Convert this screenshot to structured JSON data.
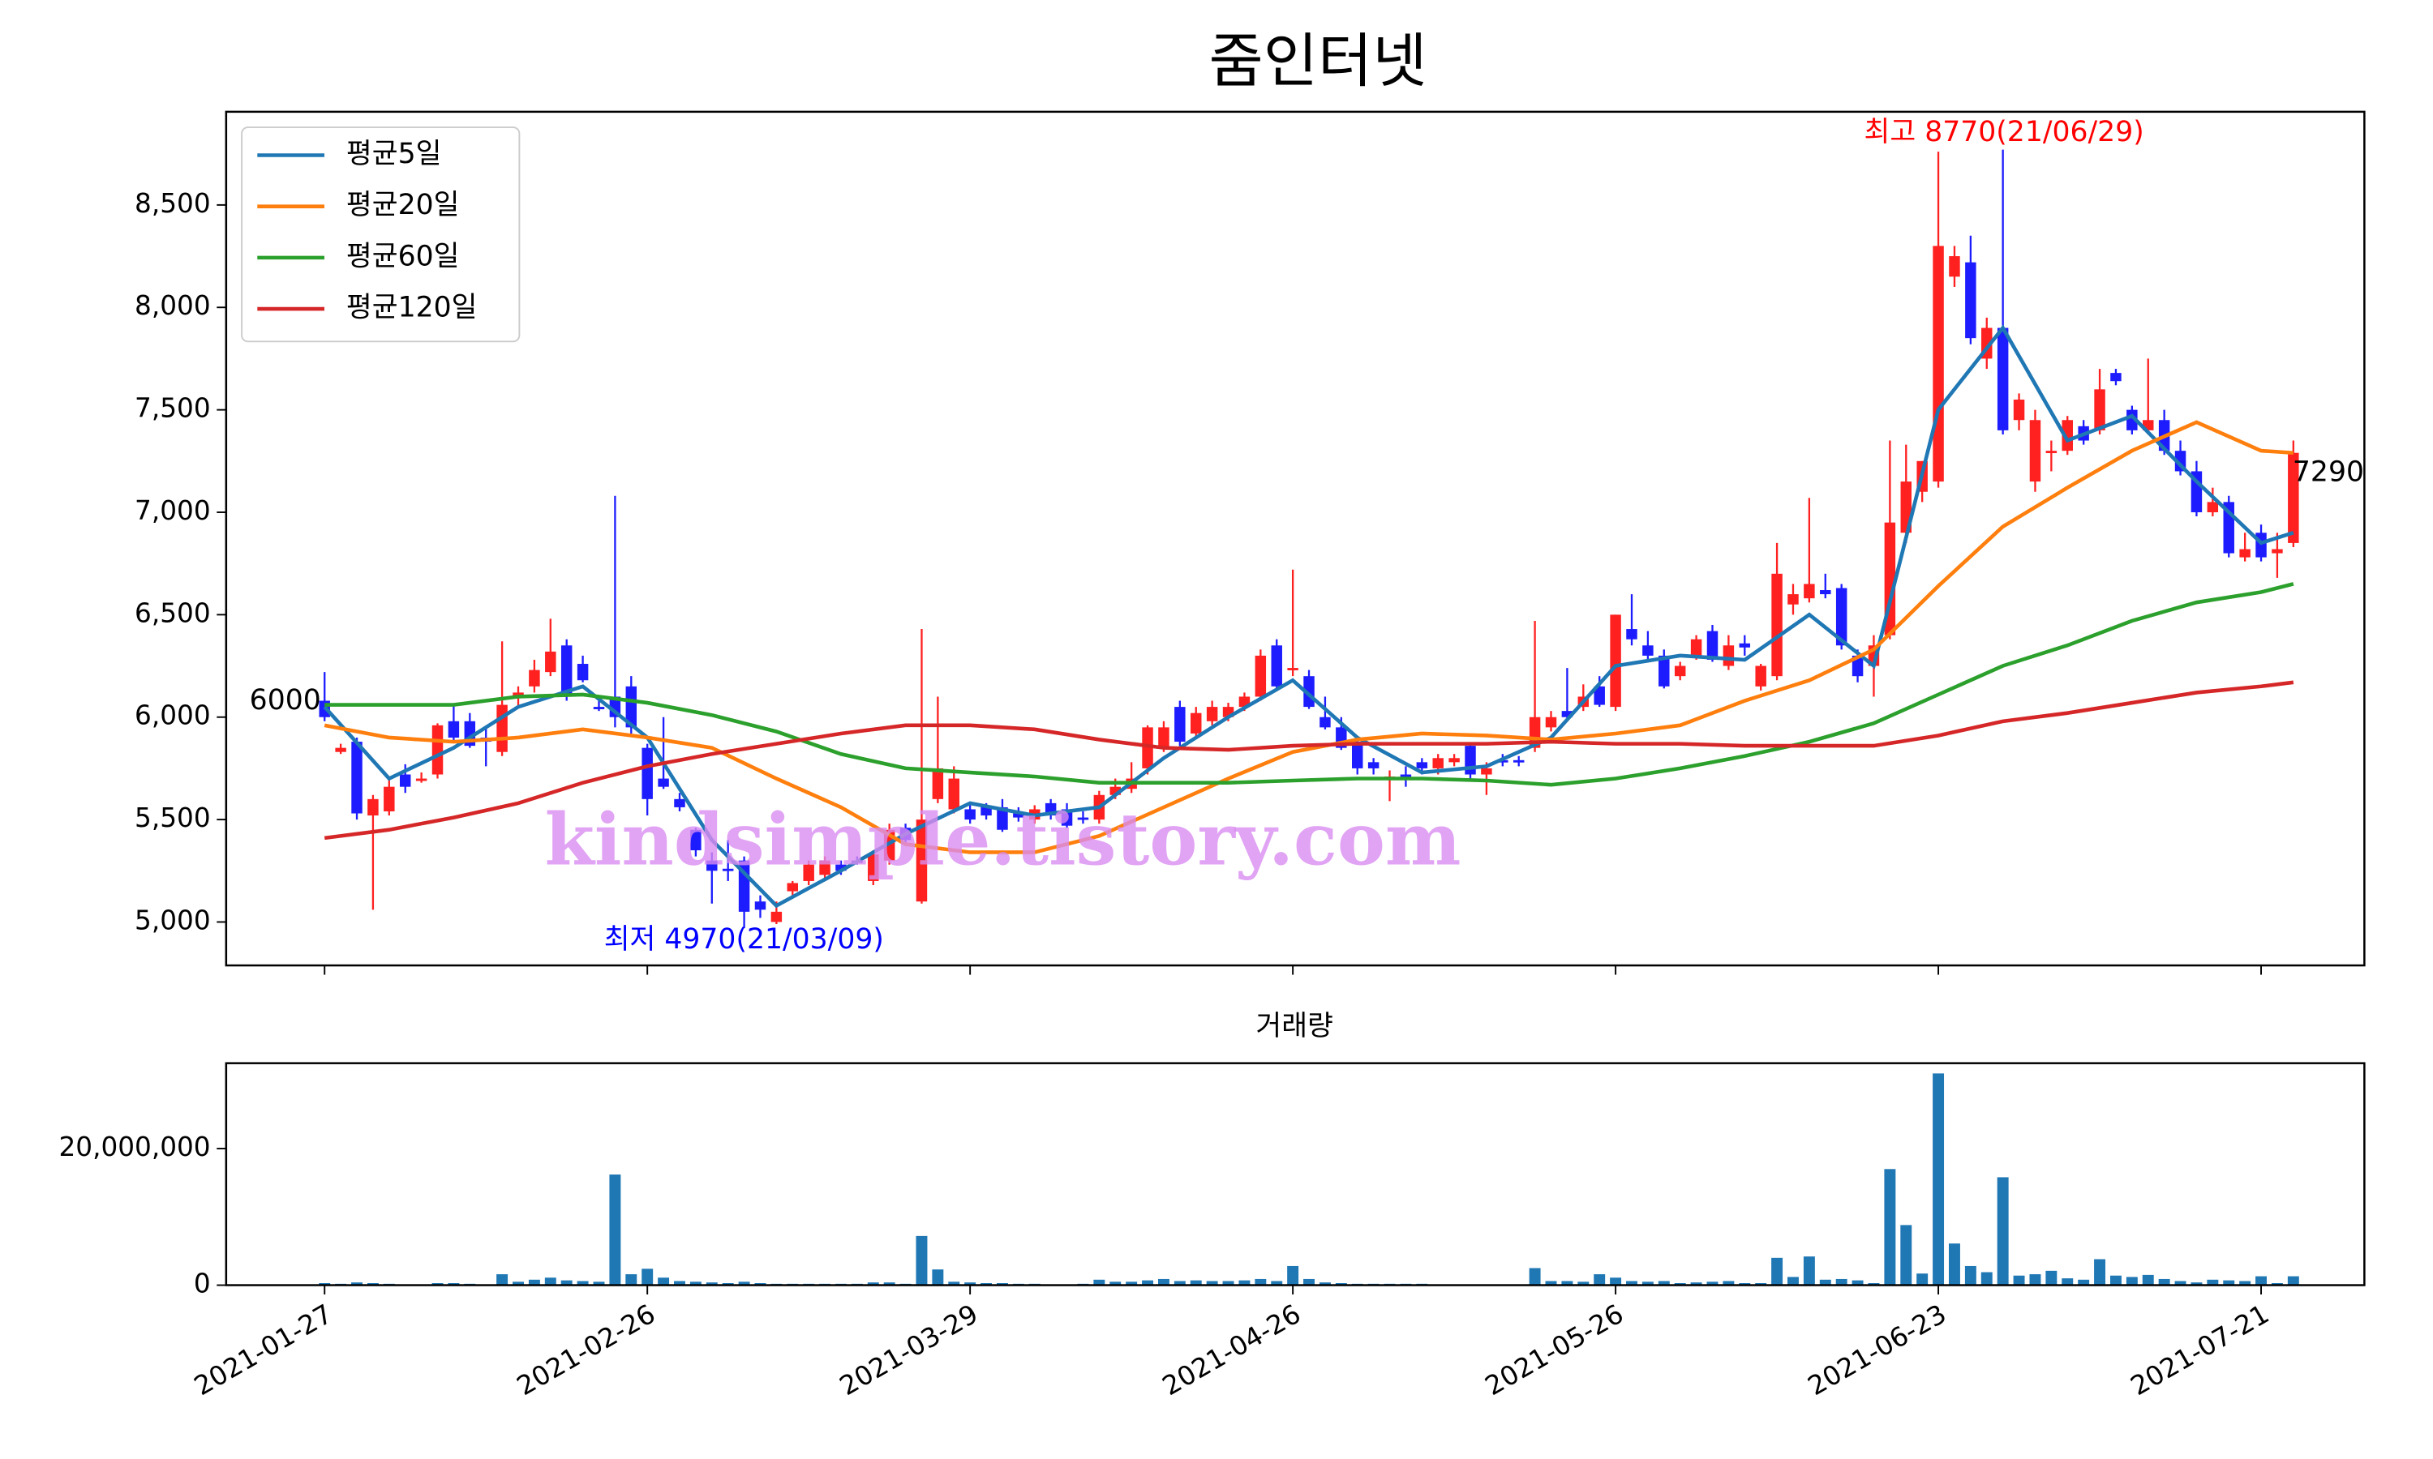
{
  "chart_data": [
    {
      "type": "candlestick",
      "title": "줌인터넷",
      "categories": [
        "2021-01-27",
        null,
        null,
        null,
        null,
        null,
        null,
        null,
        null,
        null,
        null,
        null,
        null,
        null,
        null,
        null,
        null,
        null,
        null,
        null,
        "2021-02-26",
        null,
        null,
        null,
        null,
        null,
        null,
        null,
        null,
        null,
        null,
        null,
        null,
        null,
        null,
        null,
        null,
        null,
        null,
        null,
        "2021-03-29",
        null,
        null,
        null,
        null,
        null,
        null,
        null,
        null,
        null,
        null,
        null,
        null,
        null,
        null,
        null,
        null,
        null,
        null,
        null,
        "2021-04-26",
        null,
        null,
        null,
        null,
        null,
        null,
        null,
        null,
        null,
        null,
        null,
        null,
        null,
        null,
        null,
        null,
        null,
        null,
        null,
        "2021-05-26",
        null,
        null,
        null,
        null,
        null,
        null,
        null,
        null,
        null,
        null,
        null,
        null,
        null,
        null,
        null,
        null,
        null,
        null,
        null,
        "2021-06-23",
        null,
        null,
        null,
        null,
        null,
        null,
        null,
        null,
        null,
        null,
        null,
        null,
        null,
        null,
        null,
        null,
        null,
        null,
        null,
        "2021-07-21",
        null,
        null
      ],
      "open": [
        6080,
        5830,
        5880,
        5520,
        5540,
        5720,
        5700,
        5720,
        5980,
        5980,
        5900,
        5830,
        6100,
        6150,
        6220,
        6350,
        6260,
        6050,
        6100,
        6150,
        5850,
        5700,
        5600,
        5450,
        5300,
        5260,
        5300,
        5100,
        5000,
        5150,
        5200,
        5230,
        5280,
        5300,
        5200,
        5300,
        5460,
        5100,
        5600,
        5550,
        5550,
        5560,
        5560,
        5530,
        5500,
        5580,
        5550,
        5510,
        5500,
        5620,
        5650,
        5750,
        5850,
        6050,
        5920,
        5980,
        6000,
        6050,
        6100,
        6350,
        6230,
        6200,
        6000,
        5950,
        5880,
        5780,
        5700,
        5720,
        5780,
        5750,
        5780,
        5860,
        5720,
        5790,
        5790,
        5850,
        5950,
        6030,
        6050,
        6150,
        6050,
        6430,
        6350,
        6300,
        6200,
        6300,
        6420,
        6250,
        6360,
        6150,
        6200,
        6550,
        6580,
        6620,
        6630,
        6300,
        6250,
        6400,
        6900,
        7100,
        7150,
        8150,
        8220,
        7750,
        7900,
        7450,
        7150,
        7300,
        7300,
        7420,
        7400,
        7680,
        7500,
        7400,
        7450,
        7300,
        7200,
        7000,
        7050,
        6780,
        6900,
        6800,
        6850
      ],
      "high": [
        6220,
        5870,
        5900,
        5620,
        5700,
        5770,
        5730,
        5970,
        6060,
        6020,
        5950,
        6370,
        6150,
        6280,
        6480,
        6380,
        6300,
        6100,
        7080,
        6200,
        5870,
        6000,
        5630,
        5460,
        5340,
        5400,
        5320,
        5130,
        5100,
        5200,
        5300,
        5320,
        5300,
        5320,
        5350,
        5480,
        5480,
        6430,
        6100,
        5760,
        5580,
        5580,
        5600,
        5560,
        5570,
        5600,
        5580,
        5540,
        5640,
        5700,
        5780,
        5960,
        5980,
        6080,
        6050,
        6080,
        6070,
        6120,
        6330,
        6380,
        6720,
        6230,
        6100,
        6000,
        5900,
        5800,
        5740,
        5760,
        5800,
        5820,
        5820,
        5870,
        5780,
        5820,
        5810,
        6470,
        6030,
        6240,
        6160,
        6200,
        6500,
        6600,
        6420,
        6330,
        6270,
        6400,
        6450,
        6400,
        6400,
        6260,
        6850,
        6650,
        7070,
        6700,
        6650,
        6330,
        6400,
        7350,
        7330,
        7250,
        8760,
        8300,
        8350,
        7950,
        8770,
        7580,
        7500,
        7350,
        7470,
        7450,
        7700,
        7700,
        7520,
        7750,
        7500,
        7350,
        7250,
        7120,
        7080,
        6900,
        6940,
        6900,
        7350
      ],
      "low": [
        5980,
        5820,
        5500,
        5060,
        5520,
        5630,
        5680,
        5700,
        5880,
        5850,
        5760,
        5810,
        6050,
        6120,
        6200,
        6080,
        6170,
        6030,
        5950,
        5920,
        5520,
        5650,
        5540,
        5320,
        5090,
        5200,
        4970,
        5020,
        4990,
        5120,
        5180,
        5210,
        5230,
        5280,
        5180,
        5280,
        5380,
        5090,
        5580,
        5530,
        5480,
        5500,
        5440,
        5490,
        5480,
        5500,
        5460,
        5480,
        5480,
        5600,
        5630,
        5720,
        5830,
        5860,
        5900,
        5960,
        5980,
        6030,
        6080,
        6140,
        6200,
        6040,
        5940,
        5840,
        5720,
        5720,
        5590,
        5660,
        5720,
        5720,
        5760,
        5700,
        5620,
        5760,
        5760,
        5830,
        5930,
        5980,
        6030,
        6050,
        6030,
        6350,
        6270,
        6140,
        6180,
        6280,
        6270,
        6230,
        6300,
        6130,
        6180,
        6500,
        6560,
        6580,
        6330,
        6170,
        6100,
        6380,
        6850,
        7050,
        7120,
        8100,
        7820,
        7700,
        7380,
        7400,
        7100,
        7200,
        7280,
        7330,
        7380,
        7620,
        7380,
        7380,
        7280,
        7180,
        6980,
        6980,
        6780,
        6760,
        6760,
        6680,
        6830
      ],
      "close": [
        6000,
        5850,
        5530,
        5600,
        5660,
        5660,
        5700,
        5960,
        5900,
        5860,
        5880,
        6060,
        6120,
        6230,
        6320,
        6110,
        6180,
        6040,
        6000,
        5950,
        5600,
        5660,
        5560,
        5350,
        5250,
        5250,
        5050,
        5060,
        5050,
        5190,
        5280,
        5300,
        5250,
        5290,
        5330,
        5450,
        5400,
        5500,
        5750,
        5700,
        5500,
        5520,
        5450,
        5510,
        5550,
        5520,
        5470,
        5500,
        5620,
        5660,
        5700,
        5950,
        5950,
        5880,
        6020,
        6050,
        6050,
        6100,
        6300,
        6150,
        6240,
        6050,
        5950,
        5850,
        5750,
        5750,
        5710,
        5700,
        5750,
        5800,
        5800,
        5720,
        5750,
        5780,
        5780,
        6000,
        6000,
        6000,
        6100,
        6060,
        6500,
        6380,
        6300,
        6150,
        6250,
        6380,
        6280,
        6350,
        6340,
        6250,
        6700,
        6600,
        6650,
        6600,
        6350,
        6200,
        6350,
        6950,
        7150,
        7250,
        8300,
        8250,
        7850,
        7900,
        7400,
        7550,
        7450,
        7300,
        7450,
        7350,
        7600,
        7640,
        7400,
        7450,
        7300,
        7200,
        7000,
        7050,
        6800,
        6820,
        6780,
        6820,
        7290
      ],
      "up_color": "#ff2020",
      "down_color": "#1c1cff",
      "series": [
        {
          "name": "평균5일",
          "color": "#1f77b4",
          "x": [
            0,
            4,
            8,
            12,
            16,
            20,
            24,
            28,
            32,
            36,
            40,
            44,
            48,
            52,
            56,
            60,
            64,
            68,
            72,
            76,
            80,
            84,
            88,
            92,
            96,
            100,
            104,
            108,
            112,
            116,
            120,
            122
          ],
          "values": [
            6050,
            5700,
            5850,
            6050,
            6150,
            5900,
            5400,
            5080,
            5250,
            5430,
            5580,
            5520,
            5560,
            5800,
            6000,
            6180,
            5900,
            5730,
            5760,
            5900,
            6250,
            6300,
            6280,
            6500,
            6250,
            7500,
            7900,
            7350,
            7470,
            7150,
            6850,
            6900
          ]
        },
        {
          "name": "평균20일",
          "color": "#ff7f0e",
          "x": [
            0,
            4,
            8,
            12,
            16,
            20,
            24,
            28,
            32,
            36,
            40,
            44,
            48,
            52,
            56,
            60,
            64,
            68,
            72,
            76,
            80,
            84,
            88,
            92,
            96,
            100,
            104,
            108,
            112,
            116,
            120,
            122
          ],
          "values": [
            5960,
            5900,
            5880,
            5900,
            5940,
            5900,
            5850,
            5700,
            5560,
            5380,
            5340,
            5340,
            5420,
            5560,
            5700,
            5830,
            5890,
            5920,
            5910,
            5890,
            5920,
            5960,
            6080,
            6180,
            6330,
            6640,
            6930,
            7120,
            7300,
            7440,
            7300,
            7290
          ]
        },
        {
          "name": "평균60일",
          "color": "#2ca02c",
          "x": [
            0,
            4,
            8,
            12,
            16,
            20,
            24,
            28,
            32,
            36,
            40,
            44,
            48,
            52,
            56,
            60,
            64,
            68,
            72,
            76,
            80,
            84,
            88,
            92,
            96,
            100,
            104,
            108,
            112,
            116,
            120,
            122
          ],
          "values": [
            6060,
            6060,
            6060,
            6100,
            6110,
            6070,
            6010,
            5930,
            5820,
            5750,
            5730,
            5710,
            5680,
            5680,
            5680,
            5690,
            5700,
            5700,
            5690,
            5670,
            5700,
            5750,
            5810,
            5880,
            5970,
            6110,
            6250,
            6350,
            6470,
            6560,
            6610,
            6650
          ]
        },
        {
          "name": "평균120일",
          "color": "#d62728",
          "x": [
            0,
            4,
            8,
            12,
            16,
            20,
            24,
            28,
            32,
            36,
            40,
            44,
            48,
            52,
            56,
            60,
            64,
            68,
            72,
            76,
            80,
            84,
            88,
            92,
            96,
            100,
            104,
            108,
            112,
            116,
            120,
            122
          ],
          "values": [
            5410,
            5450,
            5510,
            5580,
            5680,
            5760,
            5820,
            5870,
            5920,
            5960,
            5960,
            5940,
            5890,
            5850,
            5840,
            5860,
            5870,
            5870,
            5870,
            5880,
            5870,
            5870,
            5860,
            5860,
            5860,
            5910,
            5980,
            6020,
            6070,
            6120,
            6150,
            6170
          ]
        }
      ],
      "ylim": [
        4788,
        8955
      ],
      "yticks": [
        {
          "value": 5000,
          "label": "5,000"
        },
        {
          "value": 5500,
          "label": "5,500"
        },
        {
          "value": 6000,
          "label": "6,000"
        },
        {
          "value": 6500,
          "label": "6,500"
        },
        {
          "value": 7000,
          "label": "7,000"
        },
        {
          "value": 7500,
          "label": "7,500"
        },
        {
          "value": 8000,
          "label": "8,000"
        },
        {
          "value": 8500,
          "label": "8,500"
        }
      ],
      "legend": "upper left",
      "annotations": [
        {
          "text": "최고 8770(21/06/29)",
          "color": "#ff0000"
        },
        {
          "text": "최저 4970(21/03/09)",
          "color": "#0000ff"
        },
        {
          "text": "6000",
          "color": "#000000"
        },
        {
          "text": "7290",
          "color": "#000000"
        }
      ],
      "watermark": "kindsimple.tistory.com"
    },
    {
      "type": "volume",
      "title": "거래량",
      "color": "#1f77b4",
      "values": [
        300000,
        200000,
        400000,
        300000,
        200000,
        100000,
        100000,
        300000,
        300000,
        200000,
        100000,
        1600000,
        500000,
        800000,
        1100000,
        700000,
        600000,
        500000,
        16200000,
        1600000,
        2400000,
        1100000,
        600000,
        500000,
        400000,
        300000,
        500000,
        300000,
        200000,
        200000,
        200000,
        200000,
        200000,
        200000,
        400000,
        400000,
        200000,
        7200000,
        2300000,
        500000,
        400000,
        300000,
        300000,
        200000,
        200000,
        100000,
        100000,
        200000,
        800000,
        500000,
        500000,
        700000,
        900000,
        600000,
        700000,
        600000,
        600000,
        700000,
        900000,
        600000,
        2800000,
        900000,
        400000,
        300000,
        200000,
        200000,
        200000,
        200000,
        200000,
        100000,
        100000,
        100000,
        100000,
        100000,
        100000,
        2500000,
        600000,
        600000,
        500000,
        1600000,
        1100000,
        600000,
        500000,
        600000,
        300000,
        400000,
        500000,
        600000,
        300000,
        300000,
        4000000,
        1200000,
        4200000,
        800000,
        900000,
        700000,
        300000,
        17000000,
        8800000,
        1700000,
        31000000,
        6100000,
        2800000,
        1900000,
        15800000,
        1400000,
        1600000,
        2100000,
        1000000,
        800000,
        3800000,
        1400000,
        1200000,
        1500000,
        900000,
        600000,
        400000,
        800000,
        700000,
        600000,
        1300000,
        300000,
        1300000
      ],
      "ylim": [
        0,
        32500000
      ],
      "yticks": [
        0,
        {
          "value": 20000000,
          "label": "20,000,000"
        }
      ]
    }
  ]
}
